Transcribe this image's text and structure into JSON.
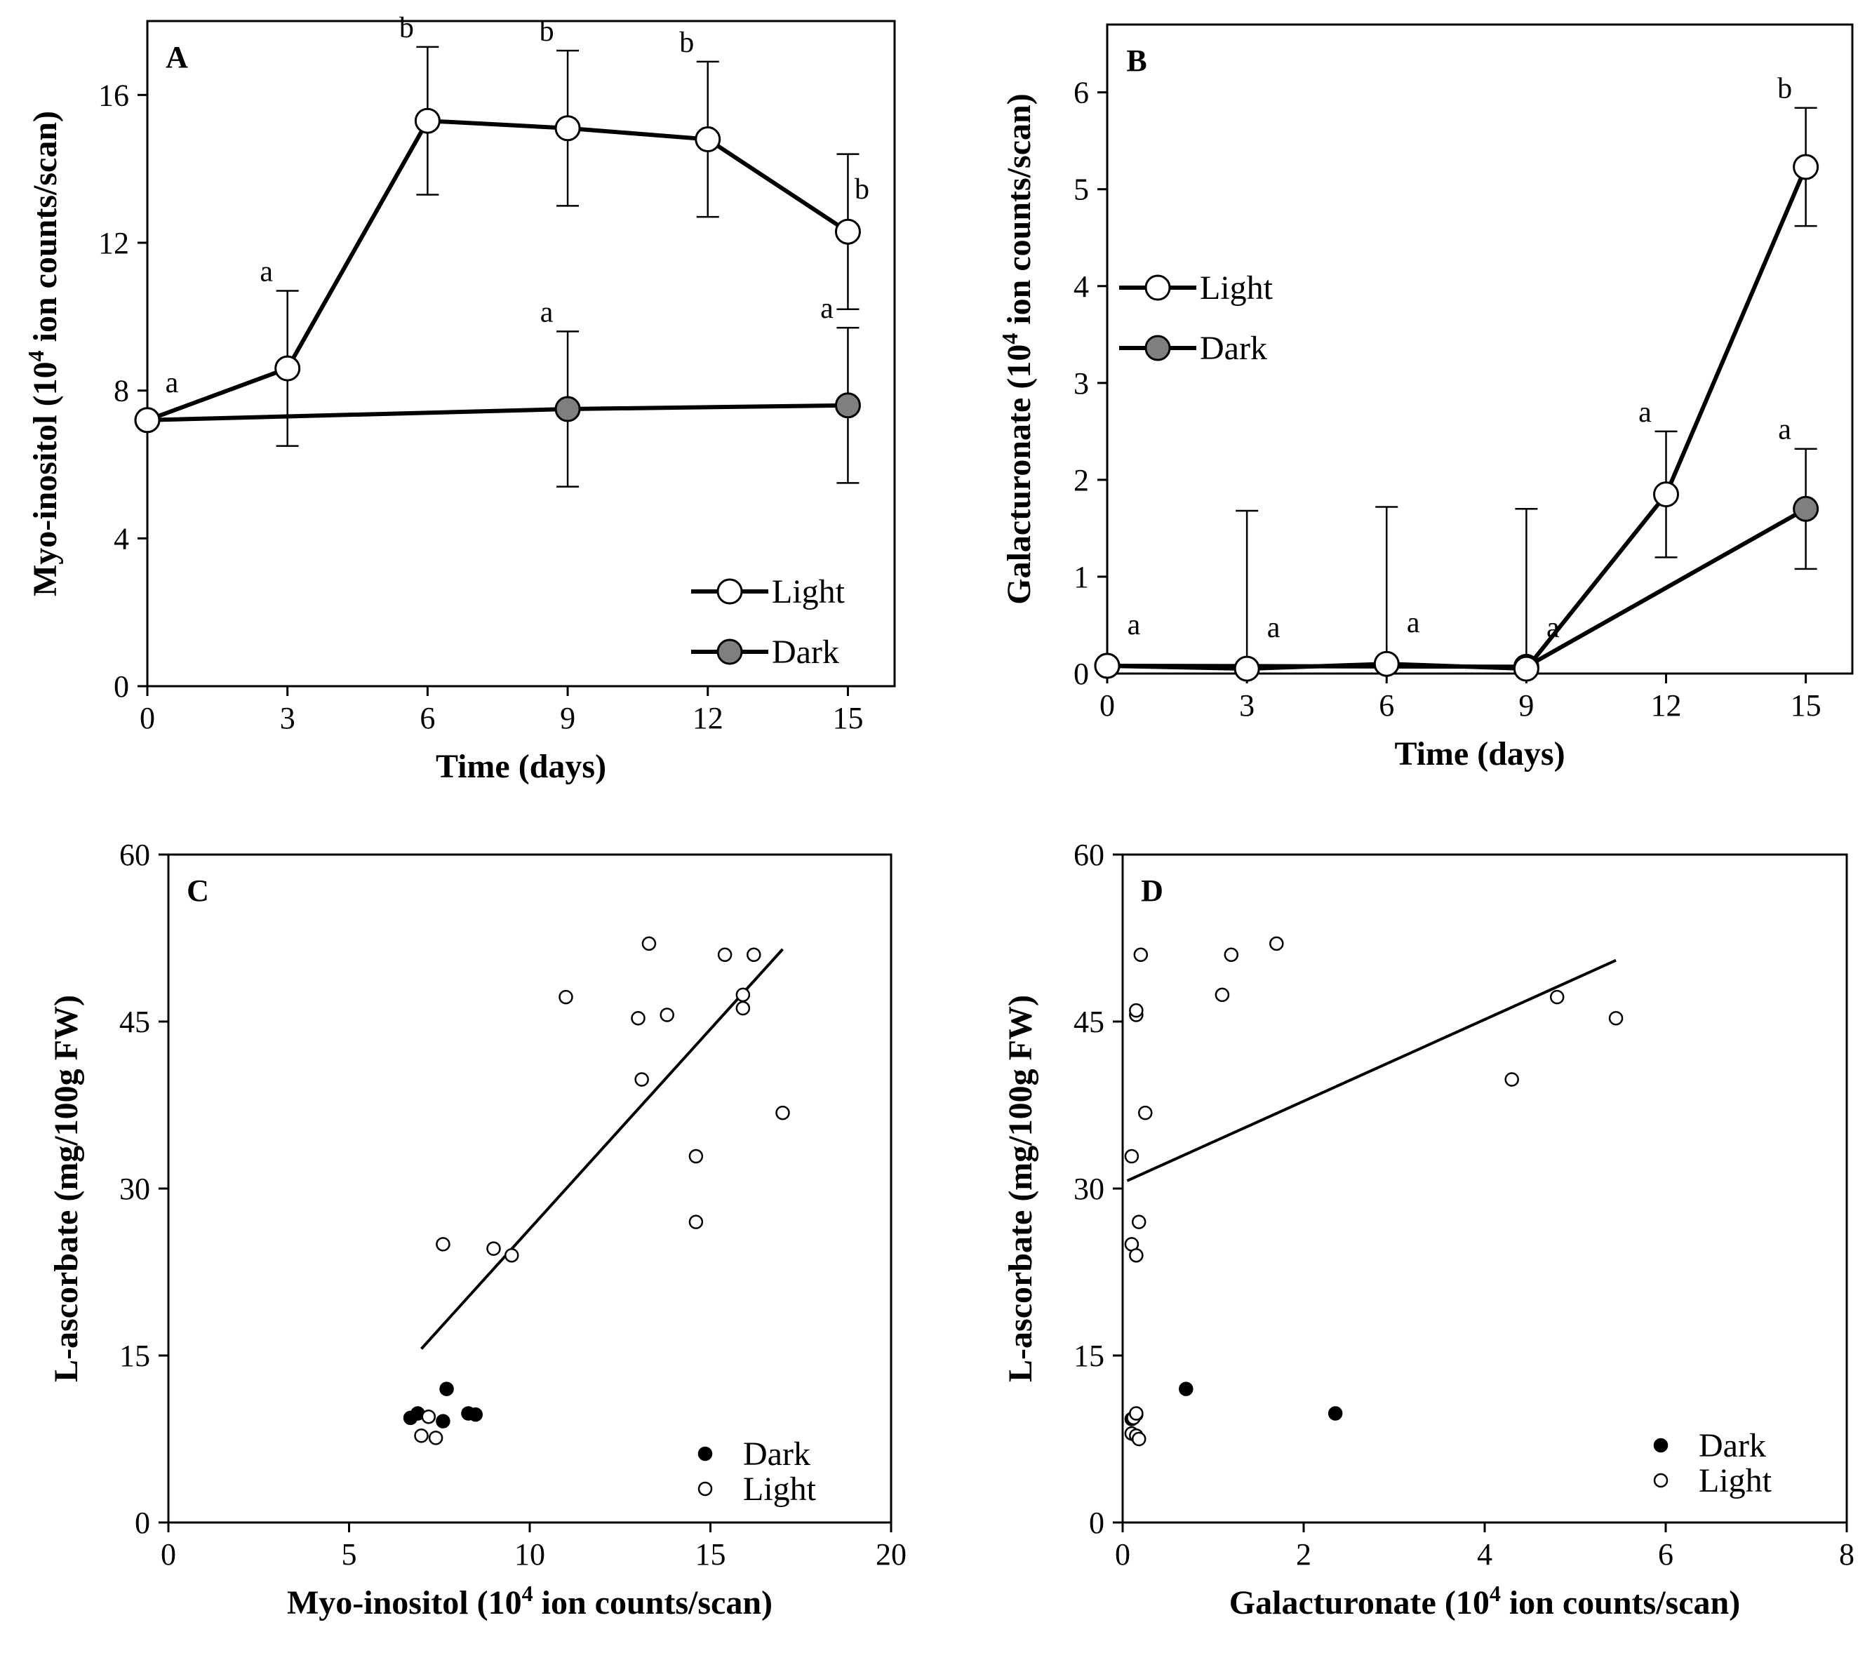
{
  "colors": {
    "light_marker_fill": "#ffffff",
    "dark_marker_fill": "#7f7f7f",
    "dark_point_fill": "#000000",
    "stroke": "#000000"
  },
  "chart_data": [
    {
      "id": "A",
      "type": "line",
      "panel_label": "A",
      "xlabel": "Time (days)",
      "ylabel_main": "Myo-inositol (10",
      "ylabel_sup": "4",
      "ylabel_rest": " ion counts/scan)",
      "xlim": [
        0,
        16
      ],
      "ylim": [
        0,
        18
      ],
      "xticks": [
        0,
        3,
        6,
        9,
        12,
        15
      ],
      "yticks": [
        0,
        4,
        8,
        12,
        16
      ],
      "legend_position": "bottom-right",
      "series": [
        {
          "name": "Light",
          "marker": "open",
          "x": [
            0,
            3,
            6,
            9,
            12,
            15
          ],
          "y": [
            7.2,
            8.6,
            15.3,
            15.1,
            14.8,
            12.3
          ],
          "err": [
            0,
            2.1,
            2.0,
            2.1,
            2.1,
            2.1
          ],
          "sig": [
            "a",
            "a",
            "b",
            "b",
            "b",
            "b"
          ]
        },
        {
          "name": "Dark",
          "marker": "filled",
          "x": [
            0,
            9,
            15
          ],
          "y": [
            7.2,
            7.5,
            7.6
          ],
          "err": [
            0,
            2.1,
            2.1
          ],
          "sig": [
            "",
            "a",
            "a"
          ]
        }
      ]
    },
    {
      "id": "B",
      "type": "line",
      "panel_label": "B",
      "xlabel": "Time (days)",
      "ylabel_main": "Galacturonate (10",
      "ylabel_sup": "4",
      "ylabel_rest": " ion counts/scan)",
      "xlim": [
        0,
        16
      ],
      "ylim": [
        0,
        6.7
      ],
      "xticks": [
        0,
        3,
        6,
        9,
        12,
        15
      ],
      "yticks": [
        0,
        1,
        2,
        3,
        4,
        5,
        6
      ],
      "legend_position": "top-left",
      "series": [
        {
          "name": "Light",
          "marker": "open",
          "x": [
            0,
            3,
            6,
            9,
            12,
            15
          ],
          "y": [
            0.08,
            0.05,
            0.1,
            0.05,
            1.85,
            5.23
          ],
          "err": [
            0,
            1.63,
            1.62,
            1.65,
            0.65,
            0.61
          ],
          "sig": [
            "a",
            "a",
            "a",
            "a",
            "a",
            "b"
          ]
        },
        {
          "name": "Dark",
          "marker": "filled",
          "x": [
            0,
            9,
            15
          ],
          "y": [
            0.08,
            0.07,
            1.7
          ],
          "err": [
            0,
            0,
            0.62
          ],
          "sig": [
            "",
            "",
            "a"
          ]
        }
      ]
    },
    {
      "id": "C",
      "type": "scatter",
      "panel_label": "C",
      "xlabel_main": "Myo-inositol (10",
      "xlabel_sup": "4",
      "xlabel_rest": " ion counts/scan)",
      "ylabel": "L-ascorbate (mg/100g FW)",
      "xlim": [
        0,
        20
      ],
      "ylim": [
        0,
        60
      ],
      "xticks": [
        0,
        5,
        10,
        15,
        20
      ],
      "yticks": [
        0,
        15,
        30,
        45,
        60
      ],
      "legend_position": "bottom-right",
      "trendline": {
        "x": [
          7,
          17
        ],
        "y": [
          15.6,
          51.5
        ]
      },
      "series": [
        {
          "name": "Dark",
          "marker": "filled",
          "points": [
            [
              6.7,
              9.4
            ],
            [
              6.9,
              9.8
            ],
            [
              7.6,
              9.1
            ],
            [
              7.7,
              12.0
            ],
            [
              8.3,
              9.8
            ],
            [
              8.5,
              9.7
            ]
          ]
        },
        {
          "name": "Light",
          "marker": "open",
          "points": [
            [
              7.0,
              7.8
            ],
            [
              7.2,
              9.5
            ],
            [
              7.4,
              7.6
            ],
            [
              7.6,
              25.0
            ],
            [
              9.0,
              24.6
            ],
            [
              9.5,
              24.0
            ],
            [
              11.0,
              47.2
            ],
            [
              13.0,
              45.3
            ],
            [
              13.1,
              39.8
            ],
            [
              13.3,
              52.0
            ],
            [
              13.8,
              45.6
            ],
            [
              14.6,
              32.9
            ],
            [
              14.6,
              27.0
            ],
            [
              15.4,
              51.0
            ],
            [
              15.9,
              46.2
            ],
            [
              15.9,
              47.4
            ],
            [
              16.2,
              51.0
            ],
            [
              17.0,
              36.8
            ]
          ]
        }
      ]
    },
    {
      "id": "D",
      "type": "scatter",
      "panel_label": "D",
      "xlabel_main": "Galacturonate (10",
      "xlabel_sup": "4",
      "xlabel_rest": " ion counts/scan)",
      "ylabel": "L-ascorbate (mg/100g FW)",
      "xlim": [
        0,
        8
      ],
      "ylim": [
        0,
        60
      ],
      "xticks": [
        0,
        2,
        4,
        6,
        8
      ],
      "yticks": [
        0,
        15,
        30,
        45,
        60
      ],
      "legend_position": "bottom-right",
      "trendline": {
        "x": [
          0.05,
          5.45
        ],
        "y": [
          30.7,
          50.5
        ]
      },
      "series": [
        {
          "name": "Dark",
          "marker": "filled",
          "points": [
            [
              0.1,
              9.3
            ],
            [
              0.15,
              9.7
            ],
            [
              0.7,
              12.0
            ],
            [
              2.35,
              9.8
            ]
          ]
        },
        {
          "name": "Light",
          "marker": "open",
          "points": [
            [
              0.1,
              8.0
            ],
            [
              0.15,
              7.8
            ],
            [
              0.18,
              7.5
            ],
            [
              0.12,
              9.4
            ],
            [
              0.15,
              9.8
            ],
            [
              0.1,
              25.0
            ],
            [
              0.15,
              24.0
            ],
            [
              0.18,
              27.0
            ],
            [
              0.1,
              32.9
            ],
            [
              0.25,
              36.8
            ],
            [
              0.15,
              45.6
            ],
            [
              0.15,
              46.0
            ],
            [
              0.2,
              51.0
            ],
            [
              1.1,
              47.4
            ],
            [
              1.2,
              51.0
            ],
            [
              1.7,
              52.0
            ],
            [
              4.3,
              39.8
            ],
            [
              4.8,
              47.2
            ],
            [
              5.45,
              45.3
            ]
          ]
        }
      ]
    }
  ]
}
